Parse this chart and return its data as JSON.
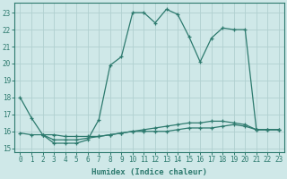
{
  "xlabel": "Humidex (Indice chaleur)",
  "bg_color": "#cfe8e8",
  "grid_color": "#b0d0d0",
  "line_color": "#2d7a6e",
  "xlim": [
    -0.5,
    23.5
  ],
  "ylim": [
    14.8,
    23.6
  ],
  "yticks": [
    15,
    16,
    17,
    18,
    19,
    20,
    21,
    22,
    23
  ],
  "xticks": [
    0,
    1,
    2,
    3,
    4,
    5,
    6,
    7,
    8,
    9,
    10,
    11,
    12,
    13,
    14,
    15,
    16,
    17,
    18,
    19,
    20,
    21,
    22,
    23
  ],
  "line1_x": [
    0,
    1,
    2,
    3,
    4,
    5,
    6,
    7,
    8,
    9,
    10,
    11,
    12,
    13,
    14,
    15,
    16,
    17,
    18,
    19,
    20,
    21,
    22,
    23
  ],
  "line1_y": [
    18.0,
    16.8,
    15.8,
    15.3,
    15.3,
    15.3,
    15.5,
    16.7,
    19.9,
    20.4,
    23.0,
    23.0,
    22.4,
    23.2,
    22.9,
    21.6,
    20.1,
    21.5,
    22.1,
    22.0,
    22.0,
    16.1,
    16.1,
    16.1
  ],
  "line2_x": [
    0,
    1,
    2,
    3,
    4,
    5,
    6,
    7,
    8,
    9,
    10,
    11,
    12,
    13,
    14,
    15,
    16,
    17,
    18,
    19,
    20,
    21,
    22,
    23
  ],
  "line2_y": [
    15.9,
    15.8,
    15.8,
    15.8,
    15.7,
    15.7,
    15.7,
    15.7,
    15.8,
    15.9,
    16.0,
    16.1,
    16.2,
    16.3,
    16.4,
    16.5,
    16.5,
    16.6,
    16.6,
    16.5,
    16.4,
    16.1,
    16.1,
    16.1
  ],
  "line3_x": [
    2,
    3,
    4,
    5,
    6,
    7,
    8,
    9,
    10,
    11,
    12,
    13,
    14,
    15,
    16,
    17,
    18,
    19,
    20,
    21,
    22,
    23
  ],
  "line3_y": [
    15.8,
    15.5,
    15.5,
    15.5,
    15.6,
    15.7,
    15.8,
    15.9,
    16.0,
    16.0,
    16.0,
    16.0,
    16.1,
    16.2,
    16.2,
    16.2,
    16.3,
    16.4,
    16.3,
    16.1,
    16.1,
    16.1
  ]
}
